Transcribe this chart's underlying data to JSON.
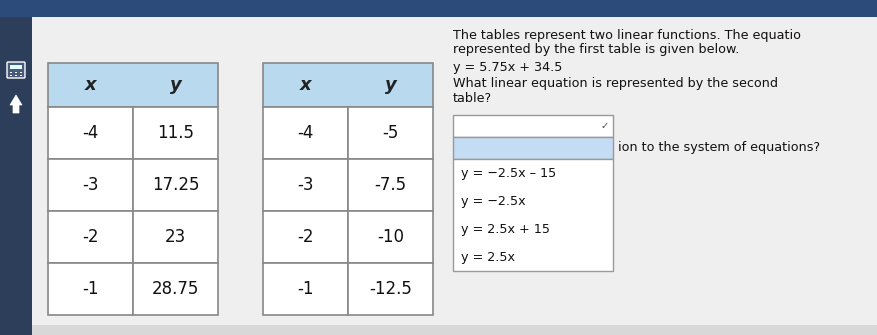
{
  "table1": {
    "headers": [
      "x",
      "y"
    ],
    "rows": [
      [
        "-4",
        "11.5"
      ],
      [
        "-3",
        "17.25"
      ],
      [
        "-2",
        "23"
      ],
      [
        "-1",
        "28.75"
      ]
    ]
  },
  "table2": {
    "headers": [
      "x",
      "y"
    ],
    "rows": [
      [
        "-4",
        "-5"
      ],
      [
        "-3",
        "-7.5"
      ],
      [
        "-2",
        "-10"
      ],
      [
        "-1",
        "-12.5"
      ]
    ]
  },
  "header_bg": "#b8d9ee",
  "table_bg": "#ffffff",
  "table_border": "#888888",
  "left_panel_bg": "#2c3e5a",
  "page_bg": "#d8d8d8",
  "content_bg": "#efefef",
  "top_bar_bg": "#2c4a7a",
  "dropdown_top_bg": "#ffffff",
  "dropdown_selected_bg": "#c5ddf4",
  "dropdown_border": "#999999",
  "text_desc1": "The tables represent two linear functions. The equatio",
  "text_desc2": "represented by the first table is given below.",
  "text_eq": "y = 5.75x + 34.5",
  "text_q1": "What linear equation is represented by the second",
  "text_q2": "table?",
  "dropdown_suffix": "ion to the system of equations?",
  "options": [
    "y = −2.5x – 15",
    "y = −2.5x",
    "y = 2.5x + 15",
    "y = 2.5x"
  ]
}
